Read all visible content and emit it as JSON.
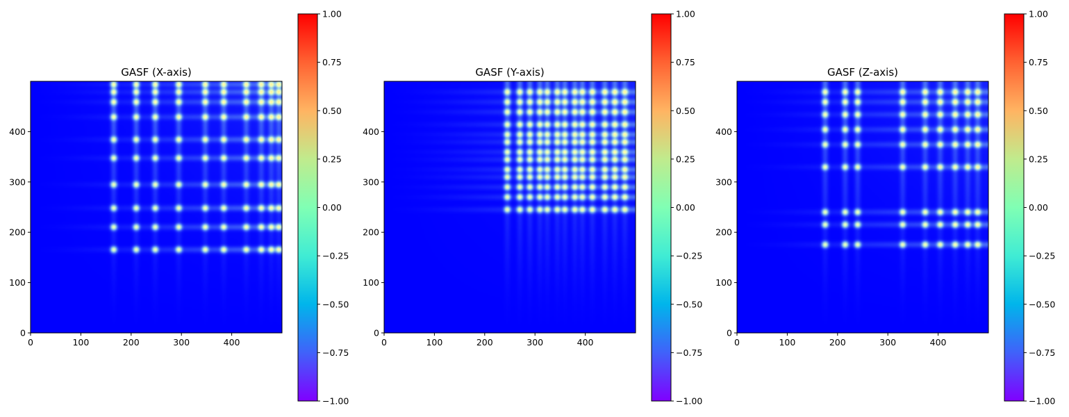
{
  "chart_data": [
    {
      "type": "heatmap",
      "title": "GASF (X-axis)",
      "xlabel": "",
      "ylabel": "",
      "xlim": [
        0,
        500
      ],
      "ylim": [
        0,
        500
      ],
      "xticks": [
        0,
        100,
        200,
        300,
        400
      ],
      "yticks": [
        0,
        100,
        200,
        300,
        400
      ],
      "colormap": "rainbow",
      "colorbar": {
        "vmin": -1.0,
        "vmax": 1.0,
        "ticks": [
          "1.00",
          "0.75",
          "0.50",
          "0.25",
          "0.00",
          "−0.25",
          "−0.50",
          "−0.75",
          "−1.00"
        ]
      },
      "peak_positions": [
        165,
        210,
        248,
        295,
        348,
        385,
        430,
        460,
        480,
        495
      ]
    },
    {
      "type": "heatmap",
      "title": "GASF (Y-axis)",
      "xlabel": "",
      "ylabel": "",
      "xlim": [
        0,
        500
      ],
      "ylim": [
        0,
        500
      ],
      "xticks": [
        0,
        100,
        200,
        300,
        400
      ],
      "yticks": [
        0,
        100,
        200,
        300,
        400
      ],
      "colormap": "rainbow",
      "colorbar": {
        "vmin": -1.0,
        "vmax": 1.0,
        "ticks": [
          "1.00",
          "0.75",
          "0.50",
          "0.25",
          "0.00",
          "−0.25",
          "−0.50",
          "−0.75",
          "−1.00"
        ]
      },
      "peak_positions": [
        245,
        270,
        290,
        310,
        325,
        345,
        360,
        380,
        395,
        415,
        440,
        460,
        480
      ]
    },
    {
      "type": "heatmap",
      "title": "GASF (Z-axis)",
      "xlabel": "",
      "ylabel": "",
      "xlim": [
        0,
        500
      ],
      "ylim": [
        0,
        500
      ],
      "xticks": [
        0,
        100,
        200,
        300,
        400
      ],
      "yticks": [
        0,
        100,
        200,
        300,
        400
      ],
      "colormap": "rainbow",
      "colorbar": {
        "vmin": -1.0,
        "vmax": 1.0,
        "ticks": [
          "1.00",
          "0.75",
          "0.50",
          "0.25",
          "0.00",
          "−0.25",
          "−0.50",
          "−0.75",
          "−1.00"
        ]
      },
      "peak_positions": [
        175,
        215,
        240,
        330,
        375,
        405,
        435,
        460,
        480
      ]
    }
  ],
  "colors": {
    "rainbow_stops": [
      "#8000ff",
      "#4062fa",
      "#00b5eb",
      "#40ecd4",
      "#80ffb4",
      "#c0eb8d",
      "#ffb462",
      "#ff6232",
      "#ff0000"
    ]
  }
}
